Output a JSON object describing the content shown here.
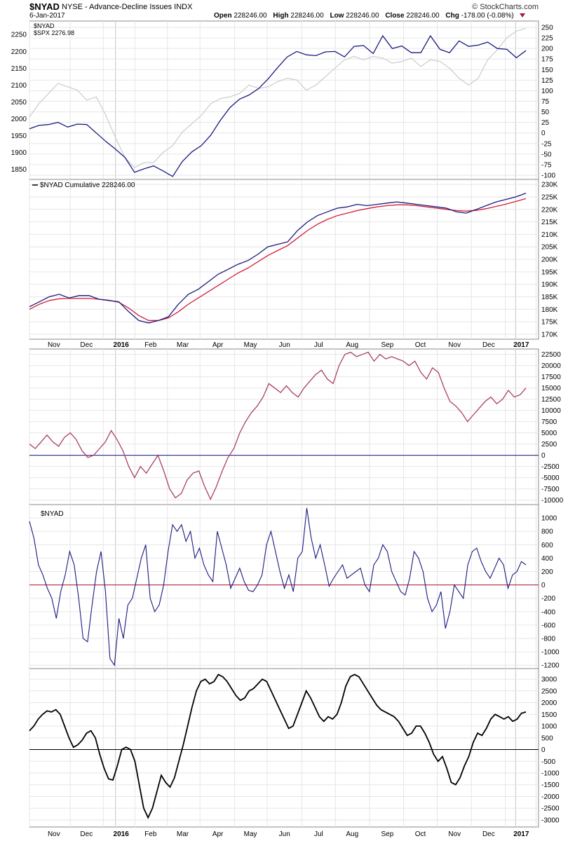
{
  "header": {
    "symbol": "$NYAD",
    "name": "NYSE - Advance-Decline Issues  INDX",
    "brand": "© StockCharts.com",
    "date": "6-Jan-2017",
    "open_label": "Open",
    "open": "228246.00",
    "high_label": "High",
    "high": "228246.00",
    "low_label": "Low",
    "low": "228246.00",
    "close_label": "Close",
    "close": "228246.00",
    "chg_label": "Chg",
    "chg": "-178.00 (-0.08%)"
  },
  "colors": {
    "navy": "#1a1a80",
    "grey": "#cfcfcf",
    "red": "#d21e3c",
    "maroon": "#a8406a",
    "black": "#000000",
    "grid": "#e6e6e6"
  },
  "chart_data": [
    {
      "type": "line",
      "legend": [
        "$NYAD",
        "$SPX 2276.98"
      ],
      "left_axis_ticks": [
        1850,
        1900,
        1950,
        2000,
        2050,
        2100,
        2150,
        2200,
        2250
      ],
      "right_axis_ticks": [
        -100,
        -75,
        -50,
        -25,
        0,
        25,
        50,
        75,
        100,
        125,
        150,
        175,
        200,
        225,
        250
      ],
      "series": [
        {
          "name": "$NYAD",
          "axis": "right",
          "values": [
            10,
            18,
            20,
            25,
            14,
            21,
            20,
            0,
            -20,
            -38,
            -58,
            -93,
            -85,
            -78,
            -90,
            -103,
            -68,
            -45,
            -30,
            -5,
            30,
            60,
            80,
            90,
            105,
            128,
            155,
            180,
            193,
            185,
            183,
            192,
            193,
            180,
            205,
            207,
            188,
            230,
            200,
            206,
            190,
            190,
            230,
            198,
            190,
            218,
            205,
            208,
            215,
            200,
            198,
            178,
            195
          ]
        },
        {
          "name": "$SPX",
          "axis": "left",
          "values": [
            2005,
            2045,
            2075,
            2105,
            2095,
            2085,
            2055,
            2065,
            2010,
            1945,
            1885,
            1855,
            1870,
            1870,
            1900,
            1920,
            1960,
            1985,
            2010,
            2045,
            2060,
            2065,
            2075,
            2100,
            2090,
            2095,
            2110,
            2120,
            2115,
            2085,
            2100,
            2125,
            2150,
            2175,
            2185,
            2175,
            2185,
            2180,
            2165,
            2170,
            2180,
            2155,
            2175,
            2170,
            2150,
            2120,
            2100,
            2120,
            2175,
            2205,
            2240,
            2260,
            2268
          ]
        }
      ]
    },
    {
      "type": "line",
      "title": "$NYAD Cumulative 228246.00",
      "y_ticks": [
        "170K",
        "175K",
        "180K",
        "185K",
        "190K",
        "195K",
        "200K",
        "205K",
        "210K",
        "215K",
        "220K",
        "225K",
        "230K"
      ],
      "ylim": [
        168000,
        232000
      ],
      "series": [
        {
          "name": "$NYAD Cumulative",
          "values": [
            181000,
            183000,
            185000,
            186000,
            184500,
            185500,
            185500,
            184000,
            183500,
            183000,
            179000,
            175500,
            174500,
            175500,
            177000,
            182000,
            186000,
            188000,
            191000,
            194000,
            196000,
            198000,
            199500,
            202000,
            205000,
            206000,
            207000,
            211500,
            215000,
            217500,
            219000,
            220500,
            221000,
            222000,
            221500,
            222000,
            222500,
            223000,
            222500,
            222000,
            221500,
            221000,
            220500,
            219000,
            218500,
            220000,
            221500,
            223000,
            224000,
            225000,
            226500
          ]
        },
        {
          "name": "moving average",
          "values": [
            180000,
            182000,
            183500,
            184200,
            184300,
            184300,
            184300,
            184000,
            183600,
            182800,
            180500,
            177500,
            175500,
            175500,
            176500,
            179000,
            182000,
            184500,
            187000,
            189500,
            192000,
            194500,
            196500,
            199000,
            201500,
            203500,
            205500,
            208500,
            211500,
            214000,
            216000,
            217500,
            218500,
            219500,
            220300,
            221000,
            221500,
            221800,
            221800,
            221500,
            221000,
            220500,
            220000,
            219500,
            219300,
            219600,
            220300,
            221200,
            222100,
            223200,
            224300
          ]
        }
      ]
    },
    {
      "type": "line",
      "y_ticks": [
        -10000,
        -7500,
        -5000,
        -2500,
        0,
        2500,
        5000,
        7500,
        10000,
        12500,
        15000,
        17500,
        20000,
        22500
      ],
      "ylim": [
        -11000,
        23700
      ],
      "zero_line": 0,
      "values": [
        2500,
        1500,
        3000,
        4500,
        3000,
        2000,
        4000,
        5000,
        3500,
        1000,
        -500,
        0,
        1500,
        3000,
        5500,
        3500,
        1000,
        -2500,
        -5000,
        -2500,
        -4000,
        -2000,
        0,
        -3500,
        -7500,
        -9500,
        -8500,
        -5500,
        -4000,
        -3500,
        -7000,
        -9800,
        -7000,
        -3500,
        -500,
        1500,
        5000,
        7500,
        9500,
        11000,
        13000,
        16000,
        15000,
        14000,
        15500,
        14000,
        13000,
        15000,
        16500,
        18000,
        19000,
        17000,
        16000,
        20000,
        22500,
        23000,
        22000,
        22500,
        23000,
        21000,
        22500,
        21500,
        22000,
        21500,
        21000,
        20000,
        21000,
        18500,
        17000,
        19500,
        18500,
        15000,
        12000,
        11000,
        9500,
        7500,
        9000,
        10500,
        12000,
        13000,
        11500,
        12500,
        14500,
        13000,
        13500,
        15000
      ]
    },
    {
      "type": "line",
      "legend": [
        "$NYAD"
      ],
      "y_ticks": [
        -1200,
        -1000,
        -800,
        -600,
        -400,
        -200,
        0,
        200,
        400,
        600,
        800,
        1000
      ],
      "ylim": [
        -1250,
        1200
      ],
      "zero_line": 0,
      "values": [
        950,
        700,
        300,
        150,
        -50,
        -200,
        -500,
        -100,
        150,
        500,
        300,
        -200,
        -800,
        -850,
        -300,
        200,
        500,
        -100,
        -1100,
        -1200,
        -500,
        -800,
        -300,
        -200,
        100,
        400,
        600,
        -200,
        -400,
        -300,
        0,
        500,
        900,
        800,
        900,
        650,
        800,
        400,
        550,
        300,
        150,
        50,
        800,
        550,
        300,
        -50,
        100,
        250,
        50,
        -80,
        -100,
        0,
        150,
        600,
        800,
        500,
        200,
        -50,
        150,
        -100,
        400,
        500,
        1150,
        700,
        400,
        600,
        300,
        -20,
        100,
        200,
        300,
        100,
        150,
        200,
        250,
        0,
        -100,
        300,
        400,
        600,
        500,
        200,
        50,
        -100,
        -150,
        100,
        500,
        400,
        200,
        -200,
        -400,
        -300,
        -100,
        -650,
        -400,
        0,
        -100,
        -200,
        300,
        500,
        550,
        350,
        200,
        100,
        250,
        400,
        300,
        -50,
        150,
        200,
        350,
        300
      ]
    },
    {
      "type": "line",
      "y_ticks": [
        -3000,
        -2500,
        -2000,
        -1500,
        -1000,
        -500,
        0,
        500,
        1000,
        1500,
        2000,
        2500,
        3000
      ],
      "ylim": [
        -3300,
        3450
      ],
      "zero_line": 0,
      "values": [
        800,
        1000,
        1300,
        1500,
        1650,
        1600,
        1700,
        1500,
        1000,
        500,
        100,
        200,
        400,
        700,
        800,
        500,
        -200,
        -800,
        -1250,
        -1300,
        -700,
        0,
        100,
        0,
        -500,
        -1500,
        -2500,
        -2900,
        -2500,
        -1800,
        -1100,
        -1400,
        -1600,
        -1200,
        -500,
        200,
        1000,
        1800,
        2500,
        2900,
        3000,
        2800,
        2900,
        3200,
        3100,
        2900,
        2600,
        2300,
        2100,
        2200,
        2500,
        2600,
        2800,
        3000,
        2900,
        2500,
        2100,
        1700,
        1300,
        900,
        1000,
        1500,
        2000,
        2500,
        2200,
        1800,
        1400,
        1200,
        1400,
        1300,
        1500,
        2000,
        2700,
        3100,
        3200,
        3100,
        2800,
        2500,
        2200,
        1900,
        1700,
        1600,
        1500,
        1400,
        1200,
        900,
        600,
        700,
        1000,
        1000,
        700,
        300,
        -200,
        -500,
        -300,
        -800,
        -1400,
        -1500,
        -1200,
        -700,
        -300,
        300,
        700,
        600,
        900,
        1300,
        1500,
        1400,
        1300,
        1400,
        1200,
        1300,
        1550,
        1600
      ]
    }
  ],
  "x_axis": {
    "labels": [
      "Nov",
      "Dec",
      "2016",
      "Feb",
      "Mar",
      "Apr",
      "May",
      "Jun",
      "Jul",
      "Aug",
      "Sep",
      "Oct",
      "Nov",
      "Dec",
      "2017"
    ],
    "bold": [
      "2016",
      "2017"
    ]
  }
}
